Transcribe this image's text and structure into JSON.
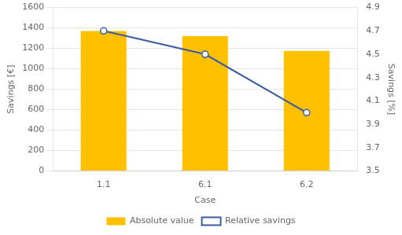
{
  "chart_data": {
    "type": "bar",
    "xlabel": "Case",
    "ylabel": "Savings [€]",
    "y2label": "Savings [%]",
    "categories": [
      "1.1",
      "6.1",
      "6.2"
    ],
    "series": [
      {
        "name": "Absolute value",
        "type": "bar",
        "color": "#FFC000",
        "values": [
          1370,
          1320,
          1175
        ]
      },
      {
        "name": "Relative savings",
        "type": "line",
        "color": "#3A5BA0",
        "marker": "circle",
        "line_style": "solid",
        "axis": "y2",
        "values": [
          4.7,
          4.5,
          4.0
        ]
      }
    ],
    "ylim": [
      0,
      1600
    ],
    "yticks": [
      0,
      200,
      400,
      600,
      800,
      1000,
      1200,
      1400,
      1600
    ],
    "y2lim": [
      3.5,
      4.9
    ],
    "y2ticks": [
      3.5,
      3.7,
      3.9,
      4.1,
      4.3,
      4.5,
      4.7,
      4.9
    ],
    "grid": true,
    "legend": "bottom"
  }
}
